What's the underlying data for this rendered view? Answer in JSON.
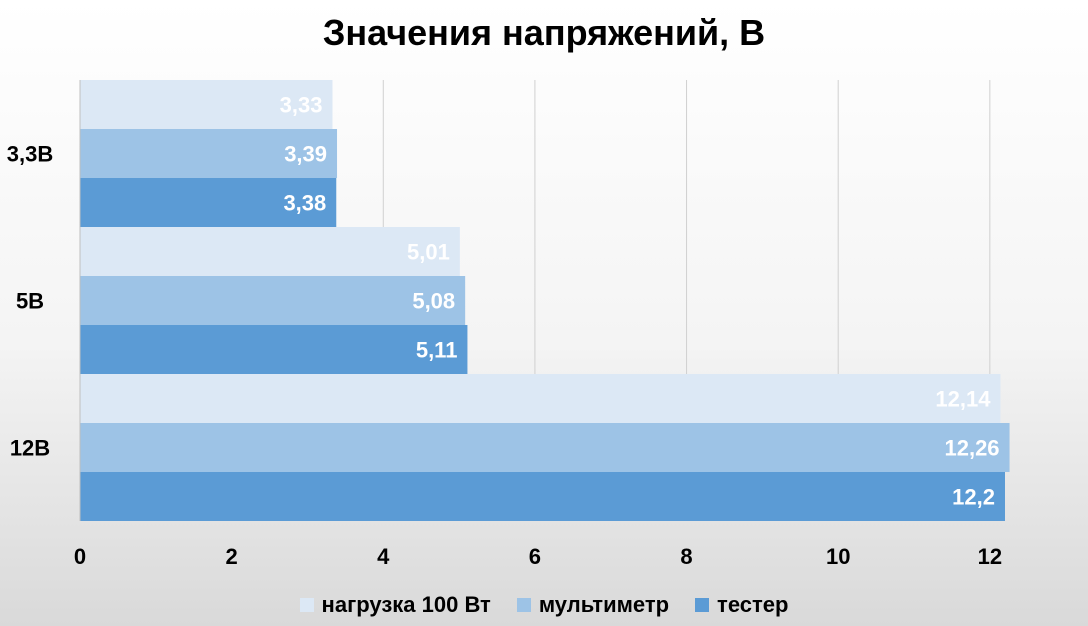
{
  "chart_data": {
    "type": "bar",
    "orientation": "horizontal",
    "title": "Значения напряжений, В",
    "categories": [
      "3,3В",
      "5В",
      "12В"
    ],
    "series": [
      {
        "name": "нагрузка 100 Вт",
        "color": "#dce8f5",
        "values": [
          3.33,
          5.01,
          12.14
        ],
        "labels": [
          "3,33",
          "5,01",
          "12,14"
        ]
      },
      {
        "name": "мультиметр",
        "color": "#9dc3e6",
        "values": [
          3.39,
          5.08,
          12.26
        ],
        "labels": [
          "3,39",
          "5,08",
          "12,26"
        ]
      },
      {
        "name": "тестер",
        "color": "#5b9bd5",
        "values": [
          3.38,
          5.11,
          12.2
        ],
        "labels": [
          "3,38",
          "5,11",
          "12,2"
        ]
      }
    ],
    "xlim": [
      0,
      12.2
    ],
    "xticks": [
      0,
      2,
      4,
      6,
      8,
      10,
      12
    ],
    "grid": true,
    "legend_position": "bottom",
    "data_labels": true
  }
}
